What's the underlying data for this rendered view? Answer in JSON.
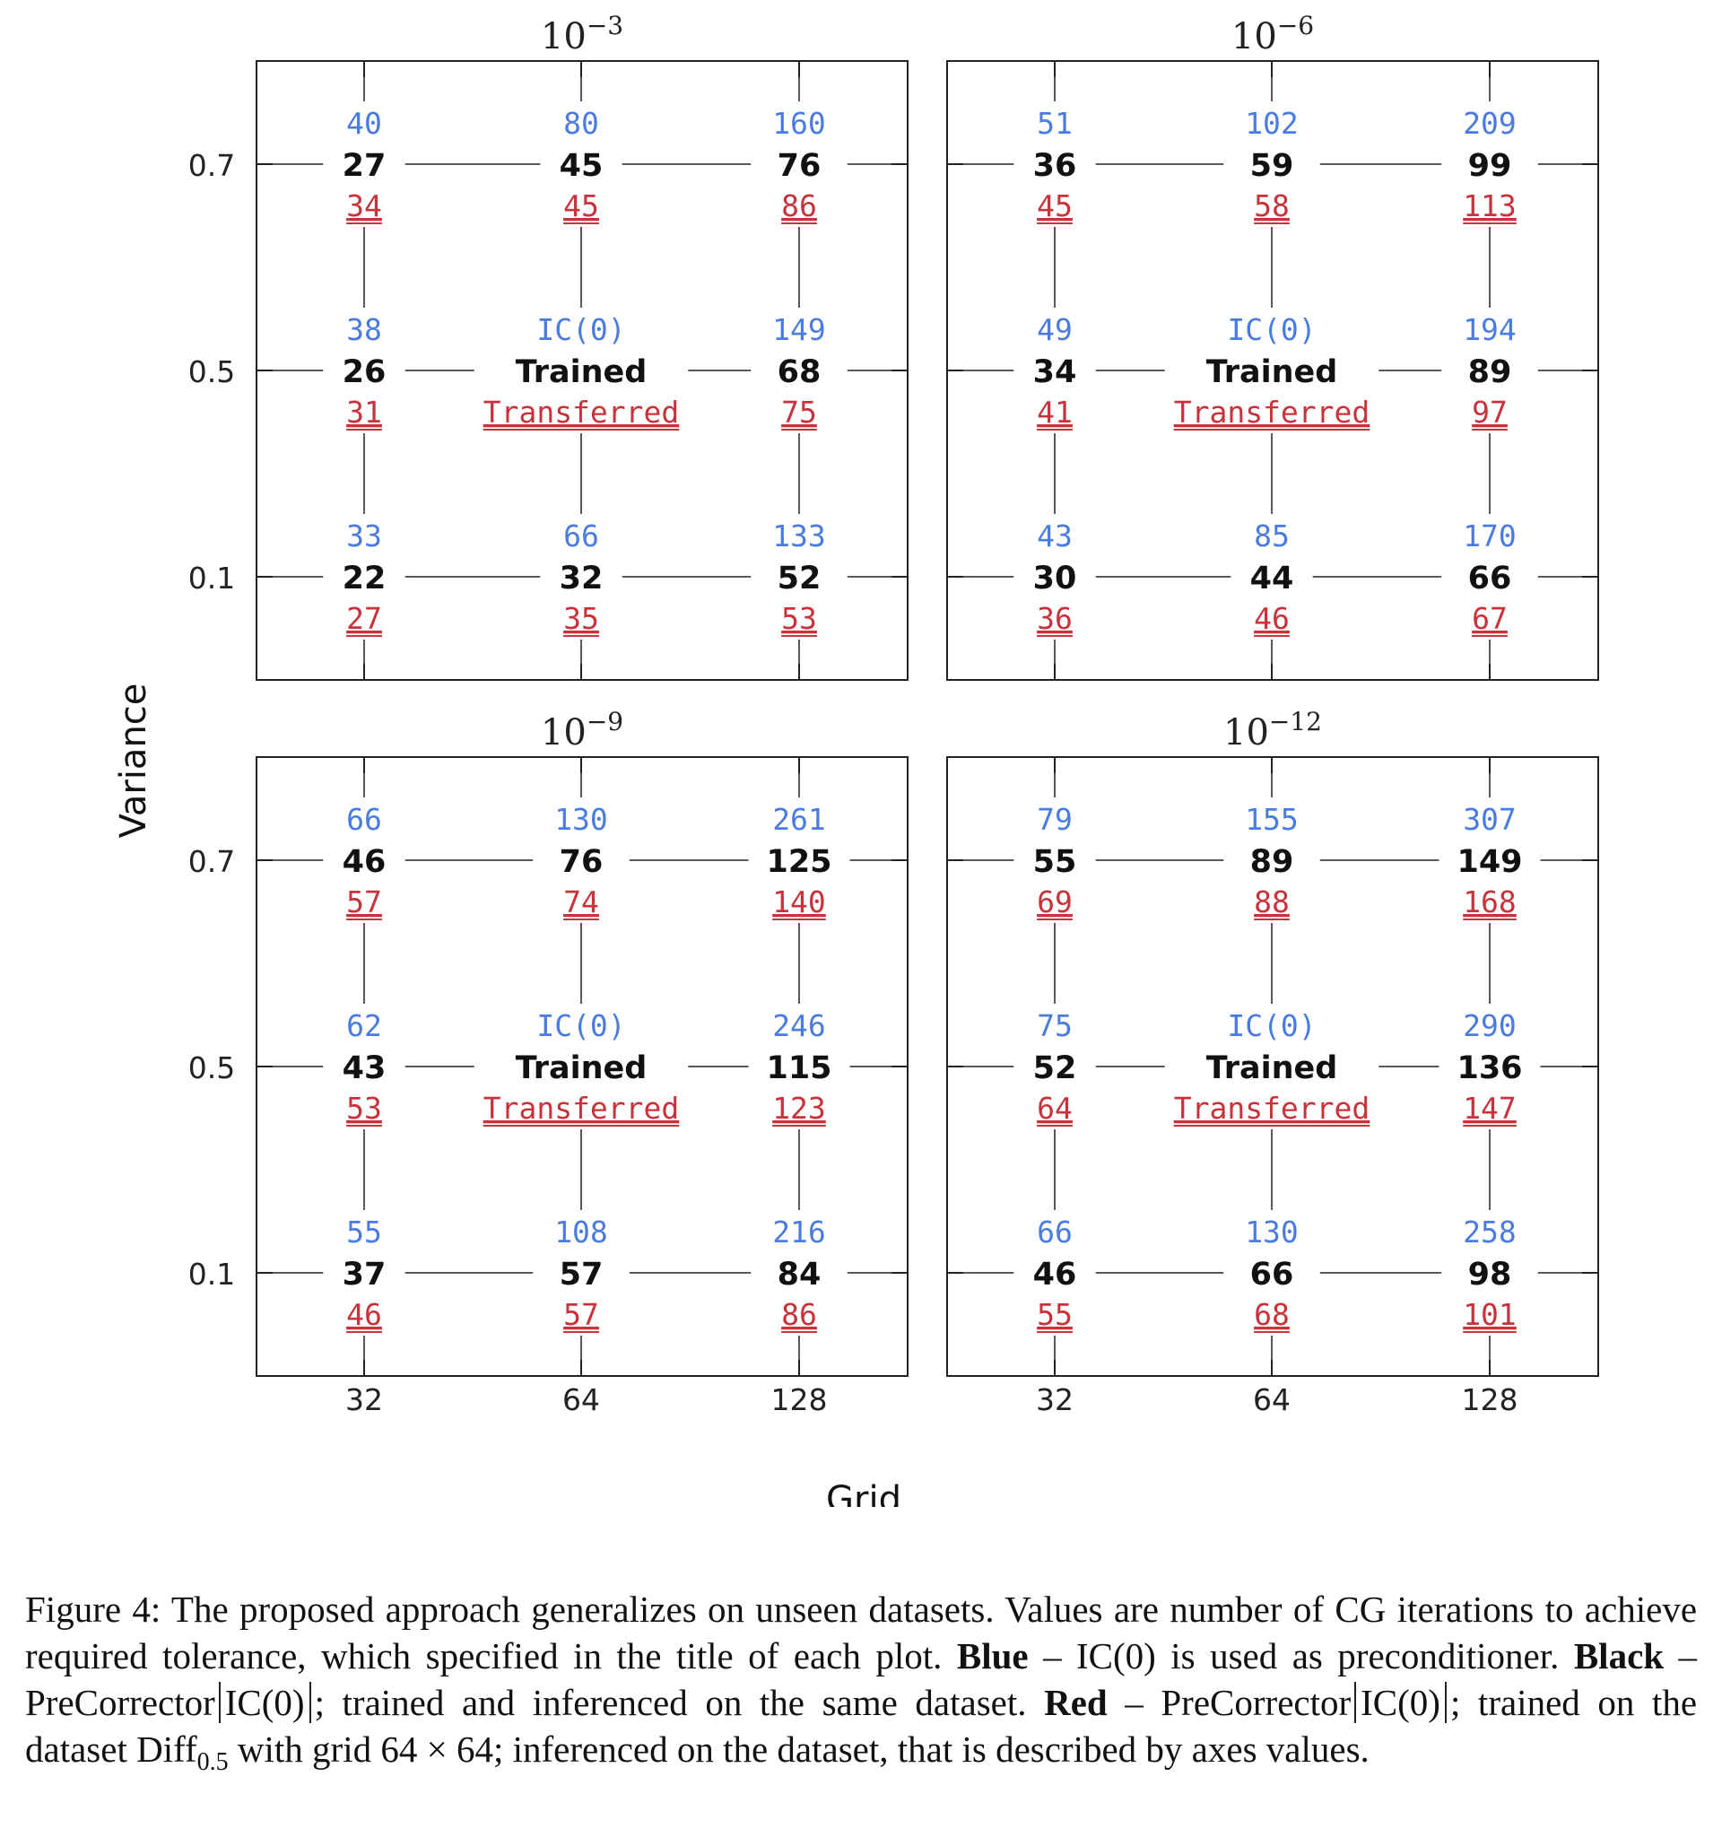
{
  "chart_data": {
    "type": "table",
    "xlabel": "Grid",
    "ylabel": "Variance",
    "x_ticks": [
      "32",
      "64",
      "128"
    ],
    "y_ticks": [
      "0.7",
      "0.5",
      "0.1"
    ],
    "series": [
      {
        "name": "IC(0)",
        "color": "#4a7be0"
      },
      {
        "name": "Trained",
        "color": "#111111"
      },
      {
        "name": "Transferred",
        "color": "#c8323a"
      }
    ],
    "panels": [
      {
        "title": "10^-3",
        "base": "10",
        "exp": "−3",
        "rows": [
          {
            "variance": "0.7",
            "cells": [
              {
                "grid": "32",
                "blue": "40",
                "black": "27",
                "red": "34"
              },
              {
                "grid": "64",
                "blue": "80",
                "black": "45",
                "red": "45"
              },
              {
                "grid": "128",
                "blue": "160",
                "black": "76",
                "red": "86"
              }
            ]
          },
          {
            "variance": "0.5",
            "cells": [
              {
                "grid": "32",
                "blue": "38",
                "black": "26",
                "red": "31"
              },
              {
                "grid": "64",
                "blue": "IC(0)",
                "black": "Trained",
                "red": "Transferred"
              },
              {
                "grid": "128",
                "blue": "149",
                "black": "68",
                "red": "75"
              }
            ]
          },
          {
            "variance": "0.1",
            "cells": [
              {
                "grid": "32",
                "blue": "33",
                "black": "22",
                "red": "27"
              },
              {
                "grid": "64",
                "blue": "66",
                "black": "32",
                "red": "35"
              },
              {
                "grid": "128",
                "blue": "133",
                "black": "52",
                "red": "53"
              }
            ]
          }
        ]
      },
      {
        "title": "10^-6",
        "base": "10",
        "exp": "−6",
        "rows": [
          {
            "variance": "0.7",
            "cells": [
              {
                "grid": "32",
                "blue": "51",
                "black": "36",
                "red": "45"
              },
              {
                "grid": "64",
                "blue": "102",
                "black": "59",
                "red": "58"
              },
              {
                "grid": "128",
                "blue": "209",
                "black": "99",
                "red": "113"
              }
            ]
          },
          {
            "variance": "0.5",
            "cells": [
              {
                "grid": "32",
                "blue": "49",
                "black": "34",
                "red": "41"
              },
              {
                "grid": "64",
                "blue": "IC(0)",
                "black": "Trained",
                "red": "Transferred"
              },
              {
                "grid": "128",
                "blue": "194",
                "black": "89",
                "red": "97"
              }
            ]
          },
          {
            "variance": "0.1",
            "cells": [
              {
                "grid": "32",
                "blue": "43",
                "black": "30",
                "red": "36"
              },
              {
                "grid": "64",
                "blue": "85",
                "black": "44",
                "red": "46"
              },
              {
                "grid": "128",
                "blue": "170",
                "black": "66",
                "red": "67"
              }
            ]
          }
        ]
      },
      {
        "title": "10^-9",
        "base": "10",
        "exp": "−9",
        "rows": [
          {
            "variance": "0.7",
            "cells": [
              {
                "grid": "32",
                "blue": "66",
                "black": "46",
                "red": "57"
              },
              {
                "grid": "64",
                "blue": "130",
                "black": "76",
                "red": "74"
              },
              {
                "grid": "128",
                "blue": "261",
                "black": "125",
                "red": "140"
              }
            ]
          },
          {
            "variance": "0.5",
            "cells": [
              {
                "grid": "32",
                "blue": "62",
                "black": "43",
                "red": "53"
              },
              {
                "grid": "64",
                "blue": "IC(0)",
                "black": "Trained",
                "red": "Transferred"
              },
              {
                "grid": "128",
                "blue": "246",
                "black": "115",
                "red": "123"
              }
            ]
          },
          {
            "variance": "0.1",
            "cells": [
              {
                "grid": "32",
                "blue": "55",
                "black": "37",
                "red": "46"
              },
              {
                "grid": "64",
                "blue": "108",
                "black": "57",
                "red": "57"
              },
              {
                "grid": "128",
                "blue": "216",
                "black": "84",
                "red": "86"
              }
            ]
          }
        ]
      },
      {
        "title": "10^-12",
        "base": "10",
        "exp": "−12",
        "rows": [
          {
            "variance": "0.7",
            "cells": [
              {
                "grid": "32",
                "blue": "79",
                "black": "55",
                "red": "69"
              },
              {
                "grid": "64",
                "blue": "155",
                "black": "89",
                "red": "88"
              },
              {
                "grid": "128",
                "blue": "307",
                "black": "149",
                "red": "168"
              }
            ]
          },
          {
            "variance": "0.5",
            "cells": [
              {
                "grid": "32",
                "blue": "75",
                "black": "52",
                "red": "64"
              },
              {
                "grid": "64",
                "blue": "IC(0)",
                "black": "Trained",
                "red": "Transferred"
              },
              {
                "grid": "128",
                "blue": "290",
                "black": "136",
                "red": "147"
              }
            ]
          },
          {
            "variance": "0.1",
            "cells": [
              {
                "grid": "32",
                "blue": "66",
                "black": "46",
                "red": "55"
              },
              {
                "grid": "64",
                "blue": "130",
                "black": "66",
                "red": "68"
              },
              {
                "grid": "128",
                "blue": "258",
                "black": "98",
                "red": "101"
              }
            ]
          }
        ]
      }
    ]
  },
  "caption": {
    "prefix": "Figure 4:",
    "t1": "The proposed approach generalizes on unseen datasets. Values are number of CG iterations to achieve required tolerance, which specified in the title of each plot.",
    "blue_label": "Blue",
    "t2": "– IC(0) is used as preconditioner.",
    "black_label": "Black",
    "t3": "– PreCorrector",
    "ic0_a": "IC(0)",
    "t4": "; trained and inferenced on the same dataset.",
    "red_label": "Red",
    "t5": "– PreCorrector",
    "ic0_b": "IC(0)",
    "t6": "; trained on the dataset Diff",
    "diff_sub": "0.5",
    "t7": "with grid 64 × 64; inferenced on the dataset, that is described by axes values."
  }
}
